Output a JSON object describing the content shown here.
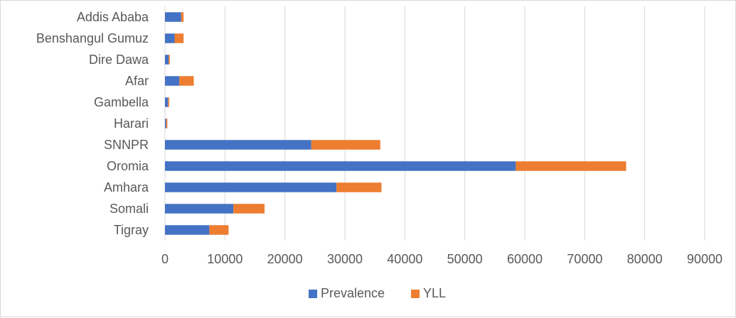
{
  "chart_data": {
    "type": "bar",
    "orientation": "horizontal",
    "stacked": true,
    "categories": [
      "Tigray",
      "Somali",
      "Amhara",
      "Oromia",
      "SNNPR",
      "Harari",
      "Gambella",
      "Afar",
      "Dire Dawa",
      "Benshangul Gumuz",
      "Addis Ababa"
    ],
    "series": [
      {
        "name": "Prevalence",
        "color": "#4472c4",
        "values": [
          7400,
          11400,
          28600,
          58500,
          24400,
          200,
          500,
          2400,
          600,
          1600,
          2700
        ]
      },
      {
        "name": "YLL",
        "color": "#ed7d31",
        "values": [
          3200,
          5200,
          7500,
          18400,
          11500,
          200,
          200,
          2400,
          200,
          1500,
          400
        ]
      }
    ],
    "xlim": [
      0,
      90000
    ],
    "xticks": [
      "0",
      "10000",
      "20000",
      "30000",
      "40000",
      "50000",
      "60000",
      "70000",
      "80000",
      "90000"
    ],
    "grid": "vertical",
    "legend": "bottom",
    "title": "",
    "xlabel": "",
    "ylabel": ""
  }
}
